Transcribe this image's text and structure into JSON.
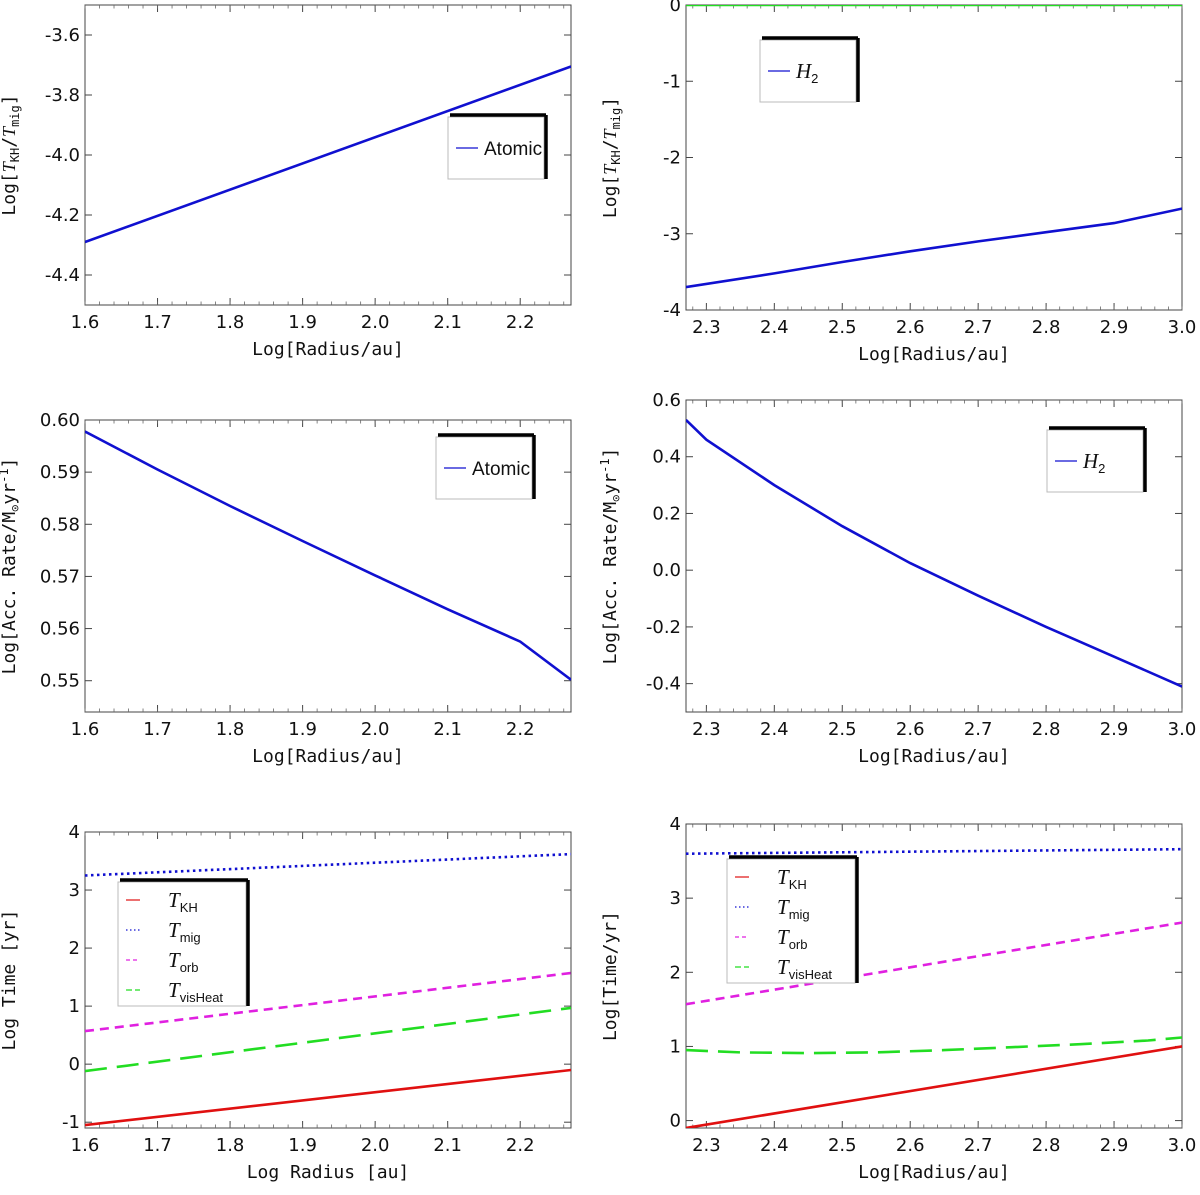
{
  "chart_data": [
    {
      "type": "line",
      "xlabel": "Log[Radius/au]",
      "ylabel": {
        "pre": "Log[",
        "a": "T",
        "a_sub": "KH",
        "sep": "/",
        "b": "T",
        "b_sub": "mig",
        "post": "]"
      },
      "xlim": [
        1.6,
        2.27
      ],
      "ylim": [
        -4.5,
        -3.5
      ],
      "xticks": [
        "1.6",
        "1.7",
        "1.8",
        "1.9",
        "2.0",
        "2.1",
        "2.2"
      ],
      "yticks": [
        "-4.4",
        "-4.2",
        "-4.0",
        "-3.8",
        "-3.6"
      ],
      "legend": {
        "position": "center-right"
      },
      "series": [
        {
          "name": "Atomic",
          "color": "#1010d0",
          "style": "solid",
          "x": [
            1.6,
            2.27
          ],
          "y": [
            -4.29,
            -3.705
          ]
        }
      ]
    },
    {
      "type": "line",
      "xlabel": "Log[Radius/au]",
      "ylabel": {
        "pre": "Log[",
        "a": "T",
        "a_sub": "KH",
        "sep": "/",
        "b": "T",
        "b_sub": "mig",
        "post": "]"
      },
      "xlim": [
        2.27,
        3.0
      ],
      "ylim": [
        -4,
        0
      ],
      "xticks": [
        "2.3",
        "2.4",
        "2.5",
        "2.6",
        "2.7",
        "2.8",
        "2.9",
        "3.0"
      ],
      "yticks": [
        "-4",
        "-3",
        "-2",
        "-1",
        "0"
      ],
      "legend": {
        "position": "top-left"
      },
      "series": [
        {
          "name": "H",
          "name_sub": "2",
          "color": "#1010d0",
          "style": "solid",
          "x": [
            2.27,
            2.4,
            2.5,
            2.6,
            2.7,
            2.8,
            2.9,
            3.0
          ],
          "y": [
            -3.7,
            -3.52,
            -3.37,
            -3.23,
            -3.1,
            -2.98,
            -2.86,
            -2.67
          ]
        },
        {
          "name": "",
          "color": "#22dd22",
          "style": "solid",
          "x": [
            2.27,
            3.0
          ],
          "y": [
            0.0,
            0.0
          ]
        }
      ]
    },
    {
      "type": "line",
      "xlabel": "Log[Radius/au]",
      "ylabel": {
        "pre": "Log[Acc. Rate/M",
        "a_sub": "⊙",
        "post": "yr",
        "post_sup": "-1",
        "end": "]"
      },
      "xlim": [
        1.6,
        2.27
      ],
      "ylim": [
        0.544,
        0.6
      ],
      "xticks": [
        "1.6",
        "1.7",
        "1.8",
        "1.9",
        "2.0",
        "2.1",
        "2.2"
      ],
      "yticks": [
        "0.55",
        "0.56",
        "0.57",
        "0.58",
        "0.59",
        "0.60"
      ],
      "legend": {
        "position": "top-right"
      },
      "series": [
        {
          "name": "Atomic",
          "color": "#1010d0",
          "style": "solid",
          "x": [
            1.6,
            1.7,
            1.8,
            1.9,
            2.0,
            2.1,
            2.2,
            2.27
          ],
          "y": [
            0.5978,
            0.5905,
            0.5835,
            0.5768,
            0.5702,
            0.5637,
            0.5575,
            0.5502
          ]
        }
      ]
    },
    {
      "type": "line",
      "xlabel": "Log[Radius/au]",
      "ylabel": {
        "pre": "Log[Acc. Rate/M",
        "a_sub": "⊙",
        "post": "yr",
        "post_sup": "-1",
        "end": "]"
      },
      "xlim": [
        2.27,
        3.0
      ],
      "ylim": [
        -0.5,
        0.6
      ],
      "xticks": [
        "2.3",
        "2.4",
        "2.5",
        "2.6",
        "2.7",
        "2.8",
        "2.9",
        "3.0"
      ],
      "yticks": [
        "-0.4",
        "-0.2",
        "0.0",
        "0.2",
        "0.4",
        "0.6"
      ],
      "legend": {
        "position": "top-right"
      },
      "series": [
        {
          "name": "H",
          "name_sub": "2",
          "color": "#1010d0",
          "style": "solid",
          "x": [
            2.27,
            2.3,
            2.4,
            2.5,
            2.6,
            2.7,
            2.8,
            2.9,
            3.0
          ],
          "y": [
            0.53,
            0.46,
            0.3,
            0.155,
            0.025,
            -0.09,
            -0.2,
            -0.305,
            -0.41
          ]
        }
      ]
    },
    {
      "type": "line",
      "xlabel": "Log Radius [au]",
      "ylabel": {
        "pre": "Log Time [yr]"
      },
      "xlim": [
        1.6,
        2.27
      ],
      "ylim": [
        -1.1,
        4
      ],
      "xticks": [
        "1.6",
        "1.7",
        "1.8",
        "1.9",
        "2.0",
        "2.1",
        "2.2"
      ],
      "yticks": [
        "-1",
        "0",
        "1",
        "2",
        "3",
        "4"
      ],
      "legend": {
        "position": "top-left"
      },
      "series": [
        {
          "name": "T",
          "name_sub": "KH",
          "color": "#e01010",
          "style": "solid",
          "x": [
            1.6,
            2.27
          ],
          "y": [
            -1.05,
            -0.1
          ]
        },
        {
          "name": "T",
          "name_sub": "mig",
          "color": "#1010d0",
          "style": "dotted",
          "x": [
            1.6,
            2.27
          ],
          "y": [
            3.25,
            3.62
          ]
        },
        {
          "name": "T",
          "name_sub": "orb",
          "color": "#e020e0",
          "style": "dashed",
          "x": [
            1.6,
            2.27
          ],
          "y": [
            0.57,
            1.57
          ]
        },
        {
          "name": "T",
          "name_sub": "visHeat",
          "color": "#22dd22",
          "style": "longdash",
          "x": [
            1.6,
            2.27
          ],
          "y": [
            -0.12,
            0.97
          ]
        }
      ]
    },
    {
      "type": "line",
      "xlabel": "Log[Radius/au]",
      "ylabel": {
        "pre": "Log[Time/yr]"
      },
      "xlim": [
        2.27,
        3.0
      ],
      "ylim": [
        -0.1,
        4
      ],
      "xticks": [
        "2.3",
        "2.4",
        "2.5",
        "2.6",
        "2.7",
        "2.8",
        "2.9",
        "3.0"
      ],
      "yticks": [
        "0",
        "1",
        "2",
        "3",
        "4"
      ],
      "legend": {
        "position": "top-left"
      },
      "series": [
        {
          "name": "T",
          "name_sub": "KH",
          "color": "#e01010",
          "style": "solid",
          "x": [
            2.27,
            3.0
          ],
          "y": [
            -0.1,
            1.0
          ]
        },
        {
          "name": "T",
          "name_sub": "mig",
          "color": "#1010d0",
          "style": "dotted",
          "x": [
            2.27,
            3.0
          ],
          "y": [
            3.6,
            3.66
          ]
        },
        {
          "name": "T",
          "name_sub": "orb",
          "color": "#e020e0",
          "style": "dashed",
          "x": [
            2.27,
            3.0
          ],
          "y": [
            1.57,
            2.67
          ]
        },
        {
          "name": "T",
          "name_sub": "visHeat",
          "color": "#22dd22",
          "style": "longdash",
          "x": [
            2.27,
            2.35,
            2.45,
            2.55,
            2.65,
            2.75,
            2.85,
            2.95,
            3.0
          ],
          "y": [
            0.95,
            0.92,
            0.91,
            0.92,
            0.95,
            0.99,
            1.03,
            1.08,
            1.12
          ]
        }
      ]
    }
  ]
}
